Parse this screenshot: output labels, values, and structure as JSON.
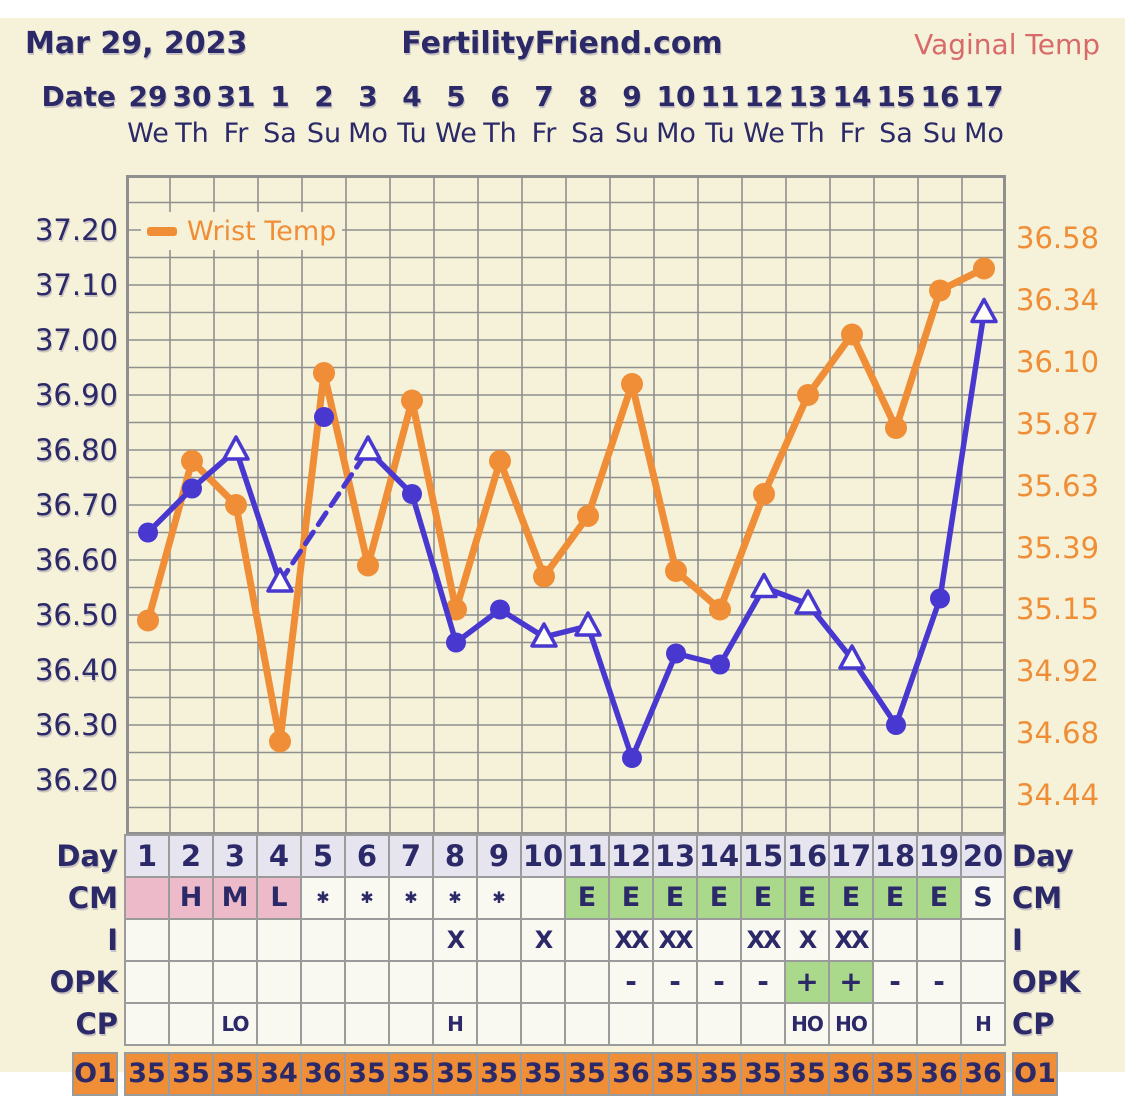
{
  "page": {
    "title_date": "Mar 29, 2023",
    "site": "FertilityFriend.com",
    "chart_label": "Vaginal Temp"
  },
  "colors": {
    "cream": "#f5f2d9",
    "navy": "#2b2968",
    "blue": "#4838d0",
    "orange": "#ef8e36",
    "coral": "#d96a6a",
    "grid": "#8f8f8f",
    "pink": "#ecbac9",
    "green": "#abd98c",
    "cell_bg": "#f9f8f1",
    "day_header_bg": "#e6e4ee"
  },
  "date_header": {
    "label": "Date",
    "dates": [
      "29",
      "30",
      "31",
      "1",
      "2",
      "3",
      "4",
      "5",
      "6",
      "7",
      "8",
      "9",
      "10",
      "11",
      "12",
      "13",
      "14",
      "15",
      "16",
      "17"
    ],
    "weekdays": [
      "We",
      "Th",
      "Fr",
      "Sa",
      "Su",
      "Mo",
      "Tu",
      "We",
      "Th",
      "Fr",
      "Sa",
      "Su",
      "Mo",
      "Tu",
      "We",
      "Th",
      "Fr",
      "Sa",
      "Su",
      "Mo"
    ]
  },
  "chart_data": {
    "type": "line",
    "title": "",
    "days": [
      1,
      2,
      3,
      4,
      5,
      6,
      7,
      8,
      9,
      10,
      11,
      12,
      13,
      14,
      15,
      16,
      17,
      18,
      19,
      20
    ],
    "left_axis": {
      "tick_labels": [
        "37.20",
        "37.10",
        "37.00",
        "36.90",
        "36.80",
        "36.70",
        "36.60",
        "36.50",
        "36.40",
        "36.30",
        "36.20"
      ],
      "range_top": 37.3,
      "range_bottom": 36.1,
      "grid_step": 0.05
    },
    "right_axis": {
      "tick_labels": [
        "36.58",
        "36.34",
        "36.10",
        "35.87",
        "35.63",
        "35.39",
        "35.15",
        "34.92",
        "34.68",
        "34.44"
      ]
    },
    "legend": {
      "label": "Wrist Temp"
    },
    "series": [
      {
        "name": "Wrist Temp",
        "color": "#ef8e36",
        "axis_note": "plotted values expressed on left-axis scale; actual readings on right axis",
        "values": [
          36.49,
          36.78,
          36.7,
          36.27,
          36.94,
          36.59,
          36.89,
          36.51,
          36.78,
          36.57,
          36.68,
          36.92,
          36.58,
          36.51,
          36.72,
          36.9,
          37.01,
          36.84,
          37.09,
          37.13
        ],
        "markers": "circle",
        "segments": [
          {
            "from": 1,
            "to": 20,
            "style": "solid"
          }
        ]
      },
      {
        "name": "Vaginal Temp",
        "color": "#4838d0",
        "values": [
          36.65,
          36.73,
          36.8,
          36.56,
          36.86,
          36.8,
          36.72,
          36.45,
          36.51,
          36.46,
          36.48,
          36.24,
          36.43,
          36.41,
          36.55,
          36.52,
          36.42,
          36.3,
          36.53,
          37.05
        ],
        "markers": [
          "circle",
          "circle",
          "triangle",
          "triangle",
          "circle",
          "triangle",
          "circle",
          "circle",
          "circle",
          "triangle",
          "triangle",
          "circle",
          "circle",
          "circle",
          "triangle",
          "triangle",
          "triangle",
          "circle",
          "circle",
          "triangle"
        ],
        "discarded_days": [
          5
        ],
        "segments": [
          {
            "from": 1,
            "to": 4,
            "style": "solid"
          },
          {
            "from": 4,
            "to": 6,
            "style": "dashed"
          },
          {
            "from": 6,
            "to": 20,
            "style": "solid"
          }
        ]
      }
    ]
  },
  "table": {
    "rows": [
      {
        "id": "day",
        "label": "Day",
        "top": 834,
        "cells": [
          {
            "t": "1",
            "bg": "hdr"
          },
          {
            "t": "2",
            "bg": "hdr"
          },
          {
            "t": "3",
            "bg": "hdr"
          },
          {
            "t": "4",
            "bg": "hdr"
          },
          {
            "t": "5",
            "bg": "hdr"
          },
          {
            "t": "6",
            "bg": "hdr"
          },
          {
            "t": "7",
            "bg": "hdr"
          },
          {
            "t": "8",
            "bg": "hdr"
          },
          {
            "t": "9",
            "bg": "hdr"
          },
          {
            "t": "10",
            "bg": "hdr"
          },
          {
            "t": "11",
            "bg": "hdr"
          },
          {
            "t": "12",
            "bg": "hdr"
          },
          {
            "t": "13",
            "bg": "hdr"
          },
          {
            "t": "14",
            "bg": "hdr"
          },
          {
            "t": "15",
            "bg": "hdr"
          },
          {
            "t": "16",
            "bg": "hdr"
          },
          {
            "t": "17",
            "bg": "hdr"
          },
          {
            "t": "18",
            "bg": "hdr"
          },
          {
            "t": "19",
            "bg": "hdr"
          },
          {
            "t": "20",
            "bg": "hdr"
          }
        ]
      },
      {
        "id": "cm",
        "label": "CM",
        "top": 876,
        "cells": [
          {
            "t": "",
            "bg": "pink"
          },
          {
            "t": "H",
            "bg": "pink"
          },
          {
            "t": "M",
            "bg": "pink"
          },
          {
            "t": "L",
            "bg": "pink"
          },
          {
            "t": "✱",
            "bg": ""
          },
          {
            "t": "✱",
            "bg": ""
          },
          {
            "t": "✱",
            "bg": ""
          },
          {
            "t": "✱",
            "bg": ""
          },
          {
            "t": "✱",
            "bg": ""
          },
          {
            "t": "",
            "bg": ""
          },
          {
            "t": "E",
            "bg": "green"
          },
          {
            "t": "E",
            "bg": "green"
          },
          {
            "t": "E",
            "bg": "green"
          },
          {
            "t": "E",
            "bg": "green"
          },
          {
            "t": "E",
            "bg": "green"
          },
          {
            "t": "E",
            "bg": "green"
          },
          {
            "t": "E",
            "bg": "green"
          },
          {
            "t": "E",
            "bg": "green"
          },
          {
            "t": "E",
            "bg": "green"
          },
          {
            "t": "S",
            "bg": ""
          }
        ]
      },
      {
        "id": "i",
        "label": "I",
        "top": 918,
        "cells": [
          {
            "t": "",
            "bg": ""
          },
          {
            "t": "",
            "bg": ""
          },
          {
            "t": "",
            "bg": ""
          },
          {
            "t": "",
            "bg": ""
          },
          {
            "t": "",
            "bg": ""
          },
          {
            "t": "",
            "bg": ""
          },
          {
            "t": "",
            "bg": ""
          },
          {
            "t": "X",
            "bg": ""
          },
          {
            "t": "",
            "bg": ""
          },
          {
            "t": "X",
            "bg": ""
          },
          {
            "t": "",
            "bg": ""
          },
          {
            "t": "XX",
            "bg": ""
          },
          {
            "t": "XX",
            "bg": ""
          },
          {
            "t": "",
            "bg": ""
          },
          {
            "t": "XX",
            "bg": ""
          },
          {
            "t": "X",
            "bg": ""
          },
          {
            "t": "XX",
            "bg": ""
          },
          {
            "t": "",
            "bg": ""
          },
          {
            "t": "",
            "bg": ""
          },
          {
            "t": "",
            "bg": ""
          }
        ]
      },
      {
        "id": "opk",
        "label": "OPK",
        "top": 960,
        "cells": [
          {
            "t": "",
            "bg": ""
          },
          {
            "t": "",
            "bg": ""
          },
          {
            "t": "",
            "bg": ""
          },
          {
            "t": "",
            "bg": ""
          },
          {
            "t": "",
            "bg": ""
          },
          {
            "t": "",
            "bg": ""
          },
          {
            "t": "",
            "bg": ""
          },
          {
            "t": "",
            "bg": ""
          },
          {
            "t": "",
            "bg": ""
          },
          {
            "t": "",
            "bg": ""
          },
          {
            "t": "",
            "bg": ""
          },
          {
            "t": "-",
            "bg": ""
          },
          {
            "t": "-",
            "bg": ""
          },
          {
            "t": "-",
            "bg": ""
          },
          {
            "t": "-",
            "bg": ""
          },
          {
            "t": "+",
            "bg": "green"
          },
          {
            "t": "+",
            "bg": "green"
          },
          {
            "t": "-",
            "bg": ""
          },
          {
            "t": "-",
            "bg": ""
          },
          {
            "t": "",
            "bg": ""
          }
        ]
      },
      {
        "id": "cp",
        "label": "CP",
        "top": 1002,
        "cells": [
          {
            "t": "",
            "bg": ""
          },
          {
            "t": "",
            "bg": ""
          },
          {
            "t": "LO",
            "bg": ""
          },
          {
            "t": "",
            "bg": ""
          },
          {
            "t": "",
            "bg": ""
          },
          {
            "t": "",
            "bg": ""
          },
          {
            "t": "",
            "bg": ""
          },
          {
            "t": "H",
            "bg": ""
          },
          {
            "t": "",
            "bg": ""
          },
          {
            "t": "",
            "bg": ""
          },
          {
            "t": "",
            "bg": ""
          },
          {
            "t": "",
            "bg": ""
          },
          {
            "t": "",
            "bg": ""
          },
          {
            "t": "",
            "bg": ""
          },
          {
            "t": "",
            "bg": ""
          },
          {
            "t": "HO",
            "bg": ""
          },
          {
            "t": "HO",
            "bg": ""
          },
          {
            "t": "",
            "bg": ""
          },
          {
            "t": "",
            "bg": ""
          },
          {
            "t": "H",
            "bg": ""
          }
        ]
      },
      {
        "id": "o1",
        "label": "O1",
        "label_boxed": true,
        "top": 1052,
        "cells": [
          {
            "t": "35",
            "bg": "orange"
          },
          {
            "t": "35",
            "bg": "orange"
          },
          {
            "t": "35",
            "bg": "orange"
          },
          {
            "t": "34",
            "bg": "orange"
          },
          {
            "t": "36",
            "bg": "orange"
          },
          {
            "t": "35",
            "bg": "orange"
          },
          {
            "t": "35",
            "bg": "orange"
          },
          {
            "t": "35",
            "bg": "orange"
          },
          {
            "t": "35",
            "bg": "orange"
          },
          {
            "t": "35",
            "bg": "orange"
          },
          {
            "t": "35",
            "bg": "orange"
          },
          {
            "t": "36",
            "bg": "orange"
          },
          {
            "t": "35",
            "bg": "orange"
          },
          {
            "t": "35",
            "bg": "orange"
          },
          {
            "t": "35",
            "bg": "orange"
          },
          {
            "t": "35",
            "bg": "orange"
          },
          {
            "t": "36",
            "bg": "orange"
          },
          {
            "t": "35",
            "bg": "orange"
          },
          {
            "t": "36",
            "bg": "orange"
          },
          {
            "t": "36",
            "bg": "orange"
          }
        ]
      }
    ]
  }
}
